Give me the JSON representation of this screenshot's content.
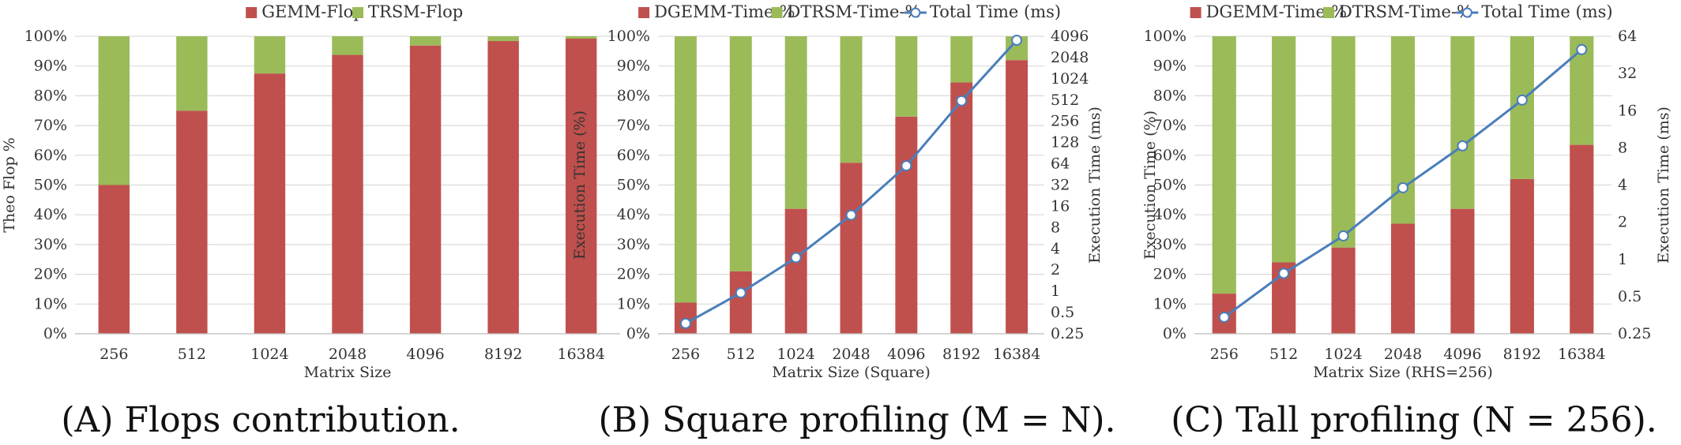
{
  "colors": {
    "red": "#c0504d",
    "green": "#9bbb59",
    "line": "#4a7ebb",
    "grid": "#d9d9d9"
  },
  "chart_data": [
    {
      "type": "bar",
      "stacked": true,
      "categories": [
        "256",
        "512",
        "1024",
        "2048",
        "4096",
        "8192",
        "16384"
      ],
      "series": [
        {
          "name": "GEMM-Flop",
          "color": "#c0504d",
          "values": [
            50.0,
            75.0,
            87.5,
            93.75,
            96.9,
            98.4,
            99.2
          ]
        },
        {
          "name": "TRSM-Flop",
          "color": "#9bbb59",
          "values": [
            50.0,
            25.0,
            12.5,
            6.25,
            3.1,
            1.6,
            0.8
          ]
        }
      ],
      "xlabel": "Matrix Size",
      "ylabel": "Theo Flop %",
      "ylim": [
        0,
        100
      ],
      "yticks": [
        "0%",
        "10%",
        "20%",
        "30%",
        "40%",
        "50%",
        "60%",
        "70%",
        "80%",
        "90%",
        "100%"
      ],
      "grid": true,
      "legend_position": "top",
      "caption": "(A) Flops contribution."
    },
    {
      "type": "bar",
      "stacked": true,
      "categories": [
        "256",
        "512",
        "1024",
        "2048",
        "4096",
        "8192",
        "16384"
      ],
      "series": [
        {
          "name": "DGEMM-Time-%",
          "color": "#c0504d",
          "values": [
            10.5,
            21.0,
            42.0,
            57.5,
            73.0,
            84.5,
            92.0
          ]
        },
        {
          "name": "DTRSM-Time-%",
          "color": "#9bbb59",
          "values": [
            89.5,
            79.0,
            58.0,
            42.5,
            27.0,
            15.5,
            8.0
          ]
        },
        {
          "name": "Total Time (ms)",
          "color": "#4a7ebb",
          "type": "line",
          "axis": "right",
          "values": [
            0.35,
            0.95,
            3.0,
            12.0,
            60.0,
            500.0,
            3600.0
          ]
        }
      ],
      "xlabel": "Matrix Size (Square)",
      "ylabel": "Execution Time (%)",
      "y2label": "Execution Time (ms)",
      "ylim": [
        0,
        100
      ],
      "y2lim": [
        0.25,
        4096
      ],
      "y2scale": "log2",
      "yticks": [
        "0%",
        "10%",
        "20%",
        "30%",
        "40%",
        "50%",
        "60%",
        "70%",
        "80%",
        "90%",
        "100%"
      ],
      "y2ticks": [
        "0.25",
        "0.5",
        "1",
        "2",
        "4",
        "8",
        "16",
        "32",
        "64",
        "128",
        "256",
        "512",
        "1024",
        "2048",
        "4096"
      ],
      "grid": true,
      "legend_position": "top",
      "caption": "(B) Square profiling (M = N)."
    },
    {
      "type": "bar",
      "stacked": true,
      "categories": [
        "256",
        "512",
        "1024",
        "2048",
        "4096",
        "8192",
        "16384"
      ],
      "series": [
        {
          "name": "DGEMM-Time-%",
          "color": "#c0504d",
          "values": [
            13.5,
            24.0,
            29.0,
            37.0,
            42.0,
            52.0,
            63.5
          ]
        },
        {
          "name": "DTRSM-Time-%",
          "color": "#9bbb59",
          "values": [
            86.5,
            76.0,
            71.0,
            63.0,
            58.0,
            48.0,
            36.5
          ]
        },
        {
          "name": "Total Time (ms)",
          "color": "#4a7ebb",
          "type": "line",
          "axis": "right",
          "values": [
            0.34,
            0.77,
            1.55,
            3.8,
            8.3,
            19.5,
            50.0
          ]
        }
      ],
      "xlabel": "Matrix Size (RHS=256)",
      "ylabel": "Execution Time (%)",
      "y2label": "Execution Time (ms)",
      "ylim": [
        0,
        100
      ],
      "y2lim": [
        0.25,
        64
      ],
      "y2scale": "log2",
      "yticks": [
        "0%",
        "10%",
        "20%",
        "30%",
        "40%",
        "50%",
        "60%",
        "70%",
        "80%",
        "90%",
        "100%"
      ],
      "y2ticks": [
        "0.25",
        "0.5",
        "1",
        "2",
        "4",
        "8",
        "16",
        "32",
        "64"
      ],
      "grid": true,
      "legend_position": "top",
      "caption": "(C) Tall profiling (N = 256)."
    }
  ]
}
